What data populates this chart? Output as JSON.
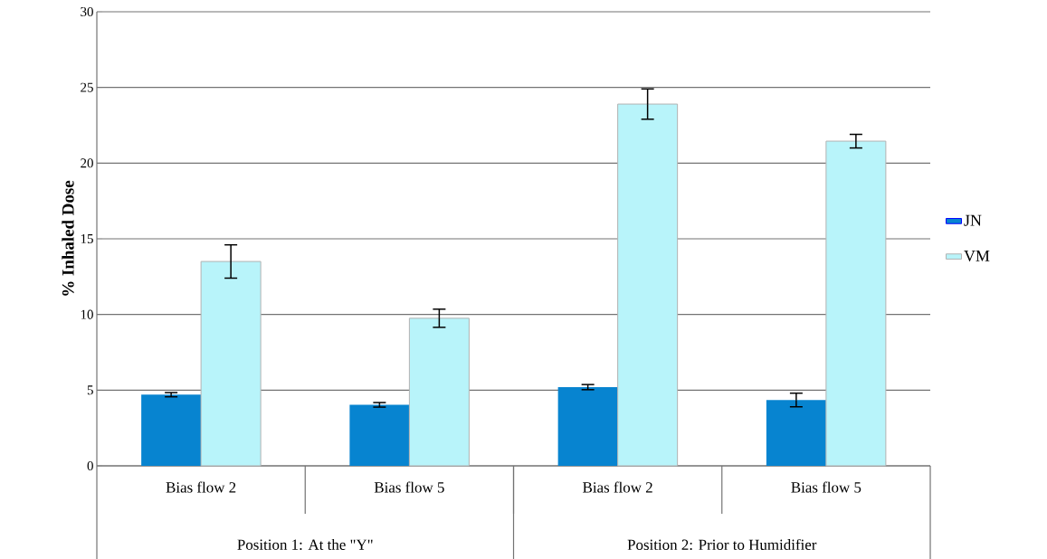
{
  "chart_data": {
    "type": "bar",
    "ylabel": "% Inhaled Dose",
    "categories": [
      "Bias flow 2",
      "Bias flow 5",
      "Bias flow 2",
      "Bias flow 5"
    ],
    "series": [
      {
        "name": "JN",
        "color": "#0784d0",
        "values": [
          4.7,
          4.03,
          5.2,
          4.35
        ],
        "errors": [
          0.14,
          0.15,
          0.17,
          0.45
        ]
      },
      {
        "name": "VM",
        "color": "#b8f4fa",
        "values": [
          13.5,
          9.75,
          23.9,
          21.45
        ],
        "errors": [
          1.1,
          0.6,
          1.0,
          0.45
        ]
      }
    ],
    "annotations": [
      "Position 1: At the \"Y\"",
      "Position 2: Prior to Humidifier"
    ],
    "ylim": [
      0,
      30
    ],
    "yticks": [
      0,
      5,
      10,
      15,
      20,
      25,
      30
    ],
    "grid": "y",
    "legend": "right"
  }
}
